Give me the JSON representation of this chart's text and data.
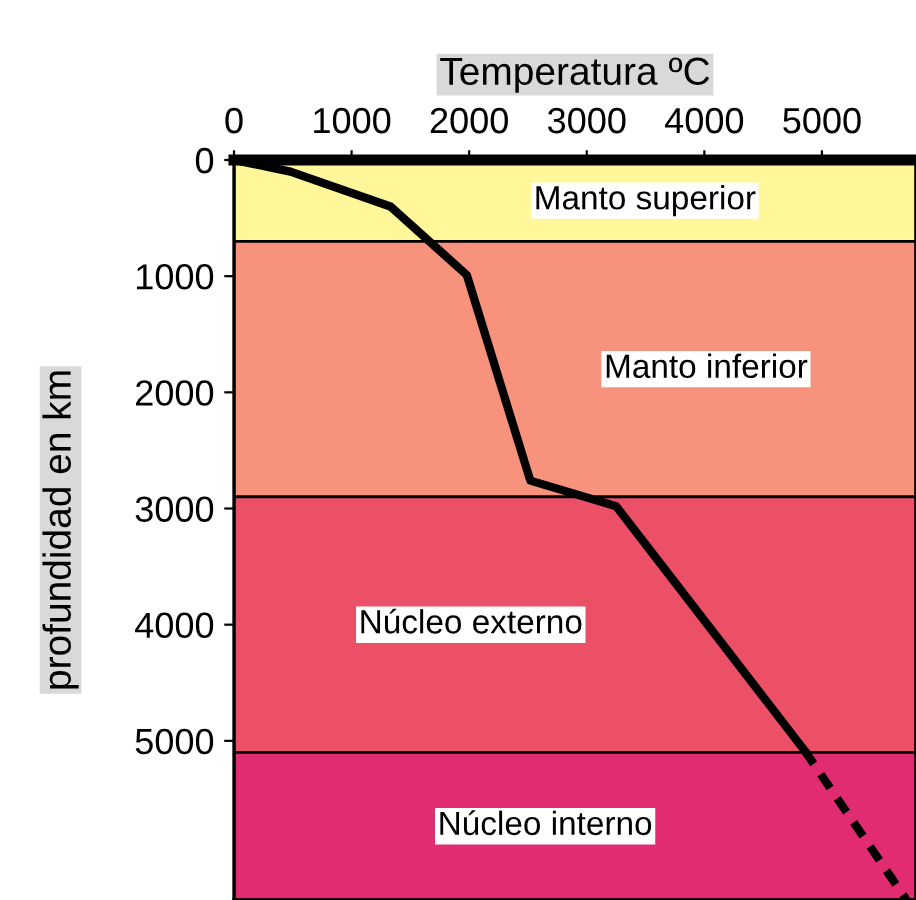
{
  "chart_data": {
    "type": "line",
    "xlabel": "Temperatura ºC",
    "ylabel": "profundidad en km",
    "xlim": [
      0,
      5800
    ],
    "xticks": [
      0,
      1000,
      2000,
      3000,
      4000,
      5000
    ],
    "ylim": [
      6370,
      0
    ],
    "yticks": [
      0,
      1000,
      2000,
      3000,
      4000,
      5000
    ],
    "series": [
      {
        "color": "#000000",
        "line_style": "solid",
        "x": [
          0,
          480,
          1330,
          1980,
          2520,
          3250,
          4850
        ],
        "values": [
          0,
          100,
          400,
          990,
          2760,
          2980,
          5080
        ]
      },
      {
        "color": "#000000",
        "line_style": "dashed",
        "x": [
          4850,
          5720
        ],
        "values": [
          5080,
          6370
        ]
      }
    ],
    "bands": [
      {
        "axis": "y",
        "from": 0,
        "to": 700,
        "label": "Manto superior",
        "color": "#fff799"
      },
      {
        "axis": "y",
        "from": 700,
        "to": 2900,
        "label": "Manto inferior",
        "color": "#f7937c"
      },
      {
        "axis": "y",
        "from": 2900,
        "to": 5100,
        "label": "Núcleo externo",
        "color": "#ec5067"
      },
      {
        "axis": "y",
        "from": 5100,
        "to": 6370,
        "label": "Núcleo interno",
        "color": "#e22c72"
      }
    ],
    "grid": false,
    "legend": false,
    "marker": "none"
  }
}
